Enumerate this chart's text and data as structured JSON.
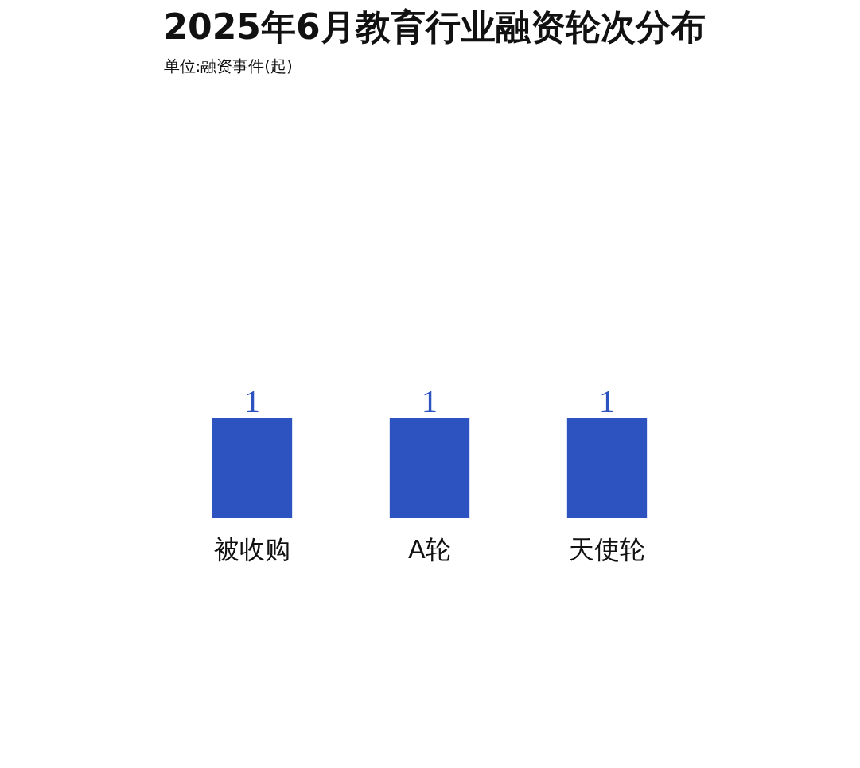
{
  "chart_data": {
    "type": "bar",
    "title": "2025年6月教育行业融资轮次分布",
    "subtitle": "单位:融资事件(起)",
    "categories": [
      "被收购",
      "A轮",
      "天使轮"
    ],
    "values": [
      1,
      1,
      1
    ],
    "color": "#2c53bf",
    "data_labels": true,
    "grid": false
  }
}
